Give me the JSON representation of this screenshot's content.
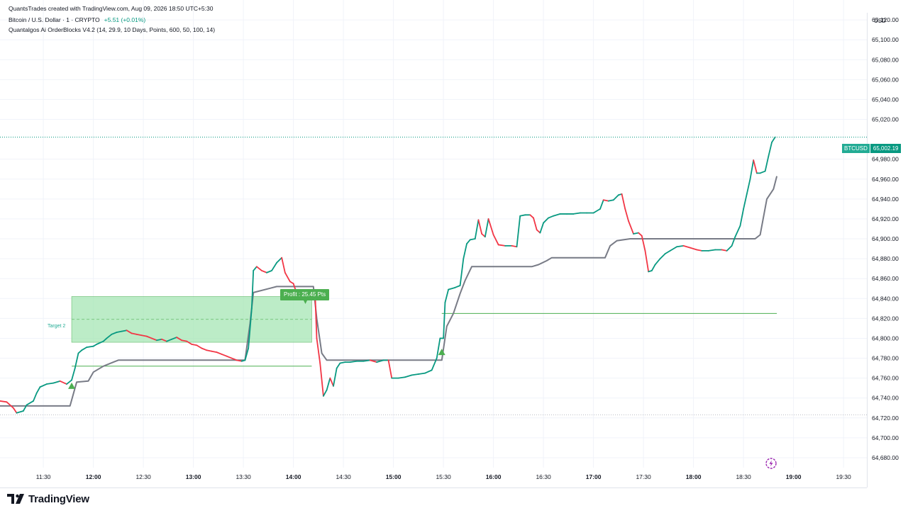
{
  "header": {
    "created_by": "QuantsTrades created with TradingView.com, Aug 09, 2026 18:50 UTC+5:30",
    "symbol_line": "Bitcoin / U.S. Dollar · 1 · CRYPTO",
    "change": "+5.51 (+0.01%)",
    "indicator_line": "Quantalgos Ai OrderBlocks V4.2 (14, 29.9, 10 Days, Points, 600, 50, 100, 14)"
  },
  "currency": "USD",
  "price_tag": {
    "symbol": "BTCUSD",
    "value": "65,002.19"
  },
  "annotations": {
    "profit_label": "Profit : 25.45 Pts",
    "target_label": "Target 2"
  },
  "brand": {
    "name": "TradingView"
  },
  "colors": {
    "up": "#089981",
    "down": "#f23645",
    "baseline": "#787b86",
    "signal": "#4caf50",
    "zone_fill": "#a5e6b4"
  },
  "chart_data": {
    "type": "line",
    "xlabel": "",
    "ylabel": "",
    "ylim": [
      64670,
      65140
    ],
    "xlim": [
      "11:04",
      "19:44"
    ],
    "grid": true,
    "x_ticks": [
      "11:30",
      "12:00",
      "12:30",
      "13:00",
      "13:30",
      "14:00",
      "14:30",
      "15:00",
      "15:30",
      "16:00",
      "16:30",
      "17:00",
      "17:30",
      "18:00",
      "18:30",
      "19:00",
      "19:30"
    ],
    "y_ticks": [
      "65,120.00",
      "65,100.00",
      "65,080.00",
      "65,060.00",
      "65,040.00",
      "65,020.00",
      "64,980.00",
      "64,960.00",
      "64,940.00",
      "64,920.00",
      "64,900.00",
      "64,880.00",
      "64,860.00",
      "64,840.00",
      "64,820.00",
      "64,800.00",
      "64,780.00",
      "64,760.00",
      "64,740.00",
      "64,720.00",
      "64,700.00",
      "64,680.00"
    ],
    "price_series": {
      "name": "BTCUSD",
      "points": [
        [
          "11:04",
          64737
        ],
        [
          "11:08",
          64736
        ],
        [
          "11:12",
          64730
        ],
        [
          "11:14",
          64725
        ],
        [
          "11:18",
          64727
        ],
        [
          "11:20",
          64733
        ],
        [
          "11:24",
          64737
        ],
        [
          "11:26",
          64745
        ],
        [
          "11:28",
          64751
        ],
        [
          "11:32",
          64754
        ],
        [
          "11:36",
          64755
        ],
        [
          "11:40",
          64757
        ],
        [
          "11:44",
          64754
        ],
        [
          "11:47",
          64758
        ],
        [
          "11:49",
          64770
        ],
        [
          "11:51",
          64785
        ],
        [
          "11:53",
          64788
        ],
        [
          "11:56",
          64791
        ],
        [
          "12:00",
          64792
        ],
        [
          "12:02",
          64794
        ],
        [
          "12:06",
          64797
        ],
        [
          "12:08",
          64800
        ],
        [
          "12:11",
          64804
        ],
        [
          "12:14",
          64806
        ],
        [
          "12:17",
          64807
        ],
        [
          "12:20",
          64808
        ],
        [
          "12:23",
          64805
        ],
        [
          "12:26",
          64804
        ],
        [
          "12:29",
          64803
        ],
        [
          "12:32",
          64802
        ],
        [
          "12:35",
          64800
        ],
        [
          "12:38",
          64798
        ],
        [
          "12:41",
          64799
        ],
        [
          "12:44",
          64797
        ],
        [
          "12:47",
          64799
        ],
        [
          "12:50",
          64801
        ],
        [
          "12:53",
          64798
        ],
        [
          "12:56",
          64797
        ],
        [
          "12:59",
          64794
        ],
        [
          "13:02",
          64793
        ],
        [
          "13:05",
          64790
        ],
        [
          "13:08",
          64788
        ],
        [
          "13:11",
          64787
        ],
        [
          "13:14",
          64786
        ],
        [
          "13:17",
          64784
        ],
        [
          "13:20",
          64782
        ],
        [
          "13:23",
          64780
        ],
        [
          "13:26",
          64778
        ],
        [
          "13:29",
          64777
        ],
        [
          "13:31",
          64778
        ],
        [
          "13:33",
          64790
        ],
        [
          "13:35",
          64830
        ],
        [
          "13:36",
          64868
        ],
        [
          "13:38",
          64872
        ],
        [
          "13:41",
          64868
        ],
        [
          "13:44",
          64866
        ],
        [
          "13:47",
          64868
        ],
        [
          "13:50",
          64876
        ],
        [
          "13:53",
          64881
        ],
        [
          "13:55",
          64866
        ],
        [
          "13:58",
          64857
        ],
        [
          "14:00",
          64855
        ],
        [
          "14:02",
          64845
        ],
        [
          "14:04",
          64840
        ],
        [
          "14:06",
          64842
        ],
        [
          "14:08",
          64845
        ],
        [
          "14:11",
          64846
        ],
        [
          "14:13",
          64846
        ],
        [
          "14:14",
          64800
        ],
        [
          "14:16",
          64775
        ],
        [
          "14:18",
          64742
        ],
        [
          "14:20",
          64748
        ],
        [
          "14:22",
          64760
        ],
        [
          "14:24",
          64752
        ],
        [
          "14:26",
          64770
        ],
        [
          "14:28",
          64775
        ],
        [
          "14:31",
          64776
        ],
        [
          "14:34",
          64776
        ],
        [
          "14:38",
          64777
        ],
        [
          "14:42",
          64777
        ],
        [
          "14:46",
          64778
        ],
        [
          "14:50",
          64776
        ],
        [
          "14:54",
          64778
        ],
        [
          "14:57",
          64778
        ],
        [
          "14:59",
          64760
        ],
        [
          "15:03",
          64760
        ],
        [
          "15:07",
          64761
        ],
        [
          "15:11",
          64763
        ],
        [
          "15:15",
          64764
        ],
        [
          "15:19",
          64765
        ],
        [
          "15:23",
          64768
        ],
        [
          "15:26",
          64780
        ],
        [
          "15:28",
          64800
        ],
        [
          "15:30",
          64800
        ],
        [
          "15:31",
          64836
        ],
        [
          "15:33",
          64849
        ],
        [
          "15:37",
          64851
        ],
        [
          "15:40",
          64853
        ],
        [
          "15:42",
          64880
        ],
        [
          "15:44",
          64895
        ],
        [
          "15:46",
          64899
        ],
        [
          "15:49",
          64900
        ],
        [
          "15:51",
          64919
        ],
        [
          "15:53",
          64905
        ],
        [
          "15:55",
          64902
        ],
        [
          "15:57",
          64920
        ],
        [
          "16:00",
          64904
        ],
        [
          "16:03",
          64894
        ],
        [
          "16:07",
          64893
        ],
        [
          "16:11",
          64893
        ],
        [
          "16:14",
          64892
        ],
        [
          "16:16",
          64923
        ],
        [
          "16:19",
          64924
        ],
        [
          "16:22",
          64924
        ],
        [
          "16:24",
          64921
        ],
        [
          "16:26",
          64909
        ],
        [
          "16:28",
          64906
        ],
        [
          "16:30",
          64916
        ],
        [
          "16:33",
          64921
        ],
        [
          "16:36",
          64923
        ],
        [
          "16:40",
          64925
        ],
        [
          "16:44",
          64925
        ],
        [
          "16:48",
          64925
        ],
        [
          "16:52",
          64926
        ],
        [
          "16:56",
          64926
        ],
        [
          "17:00",
          64926
        ],
        [
          "17:04",
          64930
        ],
        [
          "17:06",
          64939
        ],
        [
          "17:09",
          64938
        ],
        [
          "17:12",
          64939
        ],
        [
          "17:15",
          64944
        ],
        [
          "17:17",
          64945
        ],
        [
          "17:19",
          64930
        ],
        [
          "17:21",
          64918
        ],
        [
          "17:24",
          64905
        ],
        [
          "17:27",
          64906
        ],
        [
          "17:29",
          64903
        ],
        [
          "17:31",
          64888
        ],
        [
          "17:33",
          64867
        ],
        [
          "17:35",
          64868
        ],
        [
          "17:37",
          64874
        ],
        [
          "17:40",
          64880
        ],
        [
          "17:43",
          64885
        ],
        [
          "17:46",
          64888
        ],
        [
          "17:50",
          64892
        ],
        [
          "17:54",
          64893
        ],
        [
          "17:58",
          64891
        ],
        [
          "18:02",
          64889
        ],
        [
          "18:05",
          64888
        ],
        [
          "18:09",
          64888
        ],
        [
          "18:13",
          64889
        ],
        [
          "18:17",
          64889
        ],
        [
          "18:20",
          64888
        ],
        [
          "18:23",
          64893
        ],
        [
          "18:25",
          64902
        ],
        [
          "18:28",
          64913
        ],
        [
          "18:30",
          64930
        ],
        [
          "18:32",
          64945
        ],
        [
          "18:34",
          64960
        ],
        [
          "18:36",
          64979
        ],
        [
          "18:38",
          64966
        ],
        [
          "18:40",
          64966
        ],
        [
          "18:43",
          64968
        ],
        [
          "18:45",
          64983
        ],
        [
          "18:47",
          64997
        ],
        [
          "18:49",
          65002.19
        ]
      ]
    },
    "baseline_series": {
      "name": "OrderBlocks baseline",
      "points": [
        [
          "11:04",
          64732
        ],
        [
          "11:46",
          64732
        ],
        [
          "11:50",
          64756
        ],
        [
          "11:57",
          64757
        ],
        [
          "12:00",
          64766
        ],
        [
          "12:06",
          64772
        ],
        [
          "12:12",
          64776
        ],
        [
          "12:15",
          64778
        ],
        [
          "13:31",
          64778
        ],
        [
          "13:34",
          64815
        ],
        [
          "13:36",
          64846
        ],
        [
          "13:50",
          64852
        ],
        [
          "14:12",
          64852
        ],
        [
          "14:14",
          64820
        ],
        [
          "14:17",
          64785
        ],
        [
          "14:20",
          64778
        ],
        [
          "15:29",
          64778
        ],
        [
          "15:32",
          64812
        ],
        [
          "15:36",
          64825
        ],
        [
          "15:40",
          64845
        ],
        [
          "15:43",
          64858
        ],
        [
          "15:47",
          64872
        ],
        [
          "16:23",
          64872
        ],
        [
          "16:27",
          64874
        ],
        [
          "16:32",
          64878
        ],
        [
          "16:35",
          64881
        ],
        [
          "17:07",
          64881
        ],
        [
          "17:10",
          64893
        ],
        [
          "17:14",
          64898
        ],
        [
          "17:22",
          64900
        ],
        [
          "18:37",
          64900
        ],
        [
          "18:40",
          64904
        ],
        [
          "18:44",
          64940
        ],
        [
          "18:48",
          64950
        ],
        [
          "18:50",
          64963
        ]
      ]
    },
    "buy_signals": [
      [
        "11:47",
        64752
      ],
      [
        "15:29",
        64786
      ]
    ],
    "entry_levels": [
      {
        "from": "11:47",
        "to": "14:11",
        "y": 64772
      },
      {
        "from": "15:29",
        "to": "18:50",
        "y": 64825
      }
    ],
    "target_zone": {
      "from": "11:47",
      "to": "14:11",
      "y_top": 64842,
      "y_bottom": 64796,
      "target2": 64819
    },
    "last_price": 65002.19
  }
}
